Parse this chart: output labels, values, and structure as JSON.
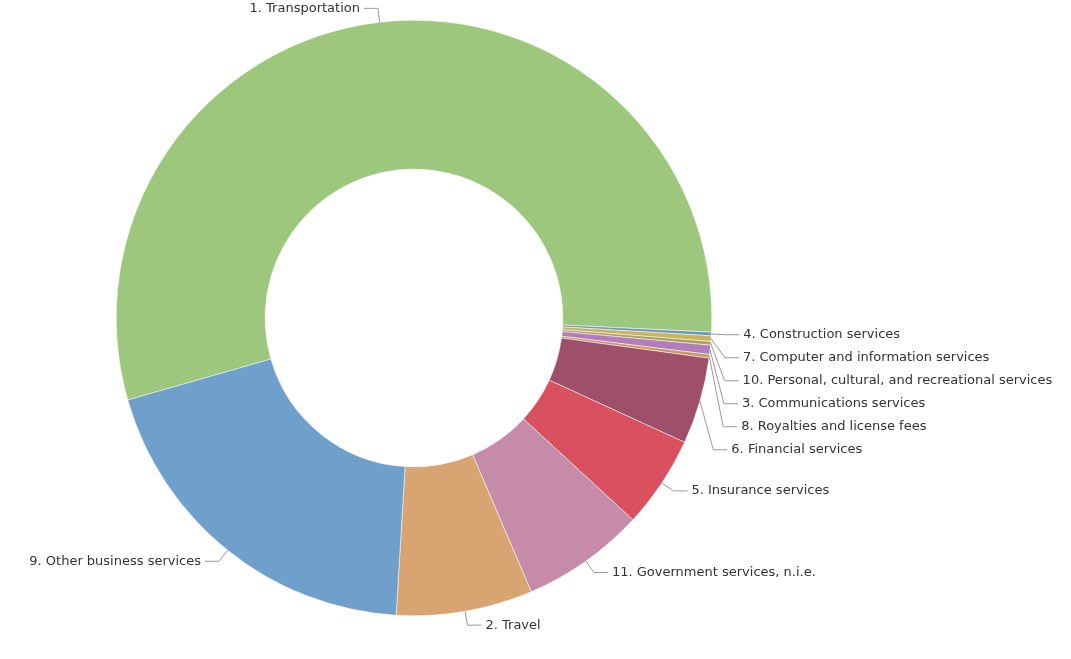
{
  "chart_data": {
    "type": "donut",
    "categories": [
      "1. Transportation",
      "4. Construction services",
      "7. Computer and information services",
      "10. Personal, cultural, and recreational services",
      "3. Communications services",
      "8. Royalties and license fees",
      "6. Financial services",
      "5. Insurance services",
      "11. Government services, n.i.e.",
      "2. Travel",
      "9. Other business services"
    ],
    "values": [
      55.2,
      0.2,
      0.3,
      0.2,
      0.5,
      0.2,
      4.7,
      5.0,
      6.7,
      7.4,
      19.6
    ],
    "colors": [
      "#9dc77d",
      "#6f95c4",
      "#c9b45c",
      "#a8a35e",
      "#b47cbd",
      "#c89a62",
      "#9e4f6a",
      "#d9505f",
      "#c68ba8",
      "#d8a472",
      "#6fa0cc"
    ],
    "legend": false
  }
}
